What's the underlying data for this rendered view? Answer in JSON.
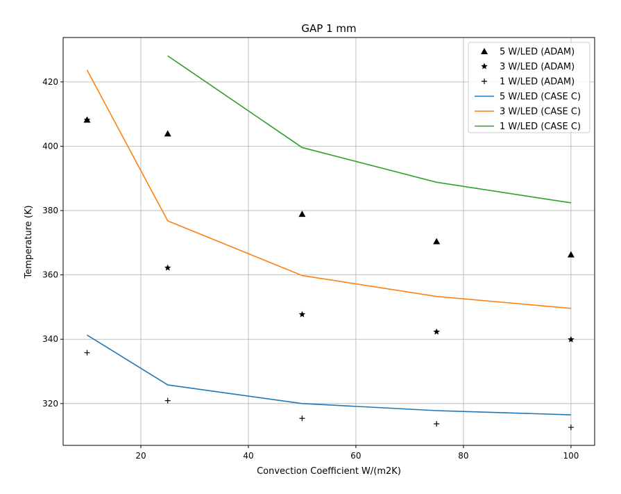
{
  "chart_data": {
    "type": "line",
    "title": "GAP 1 mm",
    "xlabel": "Convection Coefficient W/(m2K)",
    "ylabel": "Temperature (K)",
    "xlim": [
      5.55,
      104.4
    ],
    "ylim": [
      307.0,
      433.8
    ],
    "xticks": [
      20,
      40,
      60,
      80,
      100
    ],
    "yticks": [
      320,
      340,
      360,
      380,
      400,
      420
    ],
    "grid": true,
    "legend_position": "top-right",
    "series": [
      {
        "name": "5 W/LED (ADAM)",
        "kind": "marker",
        "marker": "triangle",
        "color": "#000000",
        "x": [
          10,
          25,
          50,
          75,
          100
        ],
        "y": [
          408.2,
          403.9,
          378.9,
          370.4,
          366.3
        ]
      },
      {
        "name": "3 W/LED (ADAM)",
        "kind": "marker",
        "marker": "star",
        "color": "#000000",
        "x": [
          10,
          25,
          50,
          75,
          100
        ],
        "y": [
          408.2,
          362.2,
          347.7,
          342.3,
          339.9
        ]
      },
      {
        "name": "1 W/LED (ADAM)",
        "kind": "marker",
        "marker": "plus",
        "color": "#000000",
        "x": [
          10,
          25,
          50,
          75,
          100
        ],
        "y": [
          335.8,
          320.9,
          315.4,
          313.7,
          312.6
        ]
      },
      {
        "name": "5 W/LED (CASE C)",
        "kind": "line",
        "color": "#1f77b4",
        "x": [
          10,
          25,
          50,
          75,
          100
        ],
        "y": [
          341.3,
          325.8,
          320.0,
          317.8,
          316.5
        ]
      },
      {
        "name": "3 W/LED (CASE C)",
        "kind": "line",
        "color": "#ff7f0e",
        "x": [
          10,
          25,
          50,
          75,
          100
        ],
        "y": [
          423.7,
          376.8,
          359.8,
          353.3,
          349.6
        ]
      },
      {
        "name": "1 W/LED (CASE C)",
        "kind": "line",
        "color": "#2ca02c",
        "x": [
          25,
          50,
          75,
          100
        ],
        "y": [
          428.1,
          399.6,
          388.8,
          382.4
        ]
      }
    ]
  }
}
